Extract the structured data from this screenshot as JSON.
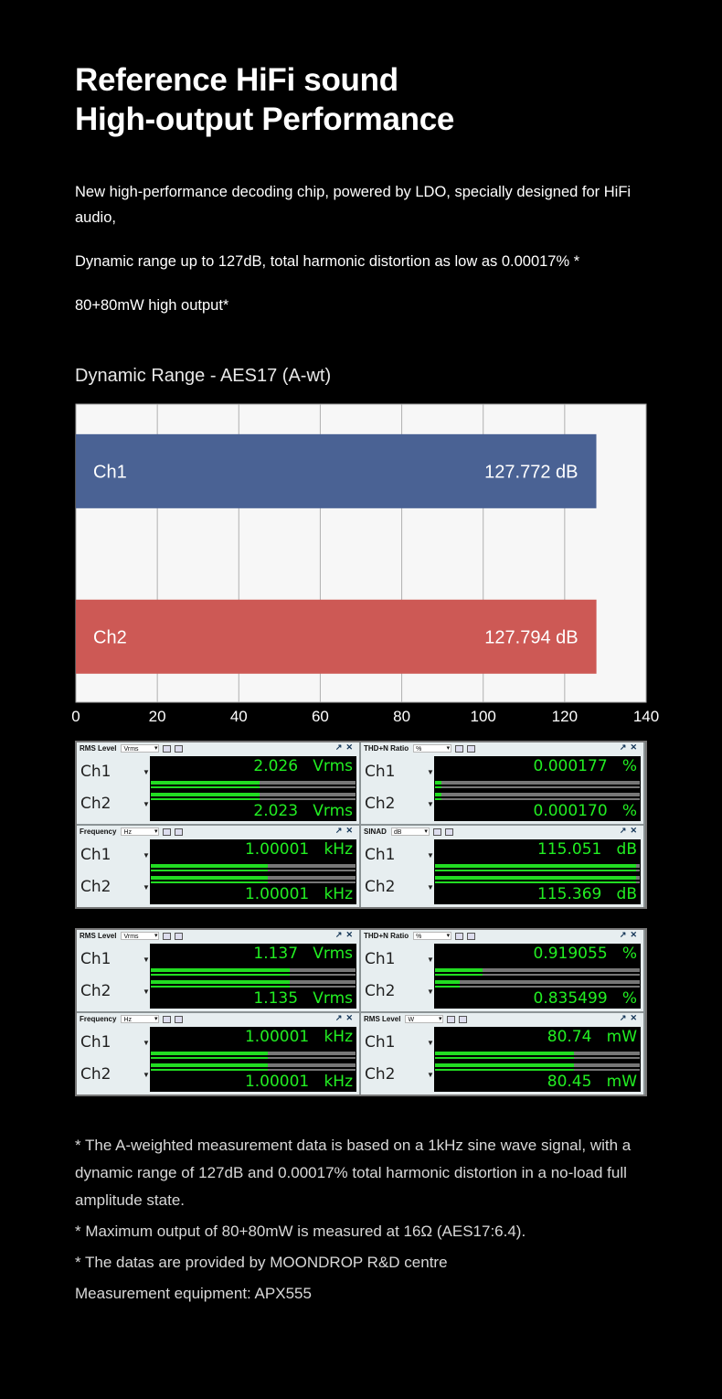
{
  "heading": {
    "line1": "Reference HiFi sound",
    "line2": "High-output Performance"
  },
  "intro": {
    "p1": "New high-performance decoding chip, powered by LDO, specially designed for HiFi audio,",
    "p2": "Dynamic range up to 127dB, total harmonic distortion as low as 0.00017% *",
    "p3": "80+80mW high output*"
  },
  "chart_title": "Dynamic Range - AES17 (A-wt)",
  "chart_data": {
    "type": "bar",
    "orientation": "horizontal",
    "title": "Dynamic Range - AES17 (A-wt)",
    "categories": [
      "Ch1",
      "Ch2"
    ],
    "values": [
      127.772,
      127.794
    ],
    "value_labels": [
      "127.772 dB",
      "127.794 dB"
    ],
    "colors": [
      "#4a6294",
      "#cd5955"
    ],
    "xlim": [
      0,
      140
    ],
    "xticks": [
      "0",
      "20",
      "40",
      "60",
      "80",
      "100",
      "120",
      "140"
    ],
    "grid": true
  },
  "meter_groups": [
    {
      "meters": [
        {
          "title": "RMS Level",
          "unit_select": "Vrms",
          "channels": [
            {
              "label": "Ch1",
              "value": "2.026",
              "unit": "Vrms",
              "level": 0.53
            },
            {
              "label": "Ch2",
              "value": "2.023",
              "unit": "Vrms",
              "level": 0.53
            }
          ]
        },
        {
          "title": "THD+N Ratio",
          "unit_select": "%",
          "channels": [
            {
              "label": "Ch1",
              "value": "0.000177",
              "unit": "%",
              "level": 0.03
            },
            {
              "label": "Ch2",
              "value": "0.000170",
              "unit": "%",
              "level": 0.03
            }
          ]
        },
        {
          "title": "Frequency",
          "unit_select": "Hz",
          "channels": [
            {
              "label": "Ch1",
              "value": "1.00001",
              "unit": "kHz",
              "level": 0.57
            },
            {
              "label": "Ch2",
              "value": "1.00001",
              "unit": "kHz",
              "level": 0.57
            }
          ]
        },
        {
          "title": "SINAD",
          "unit_select": "dB",
          "channels": [
            {
              "label": "Ch1",
              "value": "115.051",
              "unit": "dB",
              "level": 0.98
            },
            {
              "label": "Ch2",
              "value": "115.369",
              "unit": "dB",
              "level": 0.98
            }
          ]
        }
      ]
    },
    {
      "meters": [
        {
          "title": "RMS Level",
          "unit_select": "Vrms",
          "channels": [
            {
              "label": "Ch1",
              "value": "1.137",
              "unit": "Vrms",
              "level": 0.68
            },
            {
              "label": "Ch2",
              "value": "1.135",
              "unit": "Vrms",
              "level": 0.68
            }
          ]
        },
        {
          "title": "THD+N Ratio",
          "unit_select": "%",
          "channels": [
            {
              "label": "Ch1",
              "value": "0.919055",
              "unit": "%",
              "level": 0.23
            },
            {
              "label": "Ch2",
              "value": "0.835499",
              "unit": "%",
              "level": 0.12
            }
          ]
        },
        {
          "title": "Frequency",
          "unit_select": "Hz",
          "channels": [
            {
              "label": "Ch1",
              "value": "1.00001",
              "unit": "kHz",
              "level": 0.57
            },
            {
              "label": "Ch2",
              "value": "1.00001",
              "unit": "kHz",
              "level": 0.57
            }
          ]
        },
        {
          "title": "RMS Level",
          "unit_select": "W",
          "channels": [
            {
              "label": "Ch1",
              "value": "80.74",
              "unit": "mW",
              "level": 0.68
            },
            {
              "label": "Ch2",
              "value": "80.45",
              "unit": "mW",
              "level": 0.68
            }
          ]
        }
      ]
    }
  ],
  "footnotes": {
    "f1": "* The A-weighted measurement data is based on a 1kHz sine wave signal, with a dynamic range of 127dB and 0.00017% total harmonic distortion in a no-load full amplitude state.",
    "f2": "* Maximum output of 80+80mW is measured at 16Ω (AES17:6.4).",
    "f3": "* The datas are provided by MOONDROP R&D centre",
    "f4": "Measurement equipment: APX555"
  }
}
